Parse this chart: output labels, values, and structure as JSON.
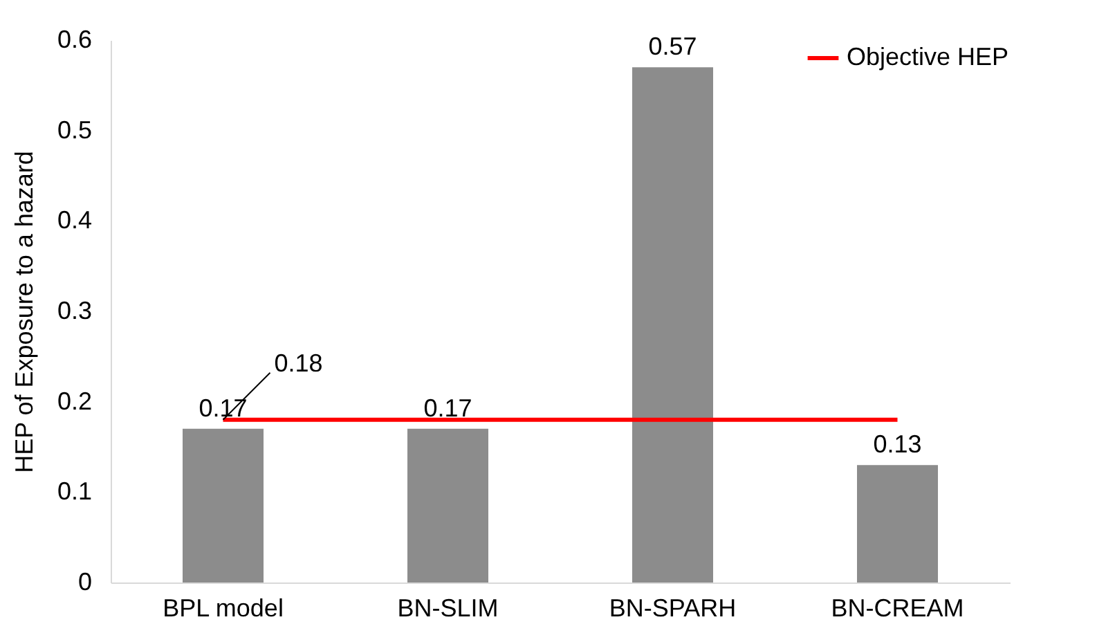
{
  "chart_data": {
    "type": "bar",
    "ylabel": "HEP of Exposure to a hazard",
    "categories": [
      "BPL model",
      "BN-SLIM",
      "BN-SPARH",
      "BN-CREAM"
    ],
    "values": [
      0.17,
      0.17,
      0.57,
      0.13
    ],
    "color": "#8c8c8c",
    "ylim": [
      0,
      0.6
    ],
    "yticks": [
      0,
      0.1,
      0.2,
      0.3,
      0.4,
      0.5,
      0.6
    ],
    "data_labels": true,
    "grid": false,
    "legend": "top right",
    "ref_lines": [
      {
        "axis": "y",
        "value": 0.18,
        "label": "Objective HEP",
        "color": "#ff0000",
        "line_style": "solid"
      }
    ],
    "annotations": [
      {
        "text": "0.18",
        "x": "BPL model",
        "y": 0.18
      }
    ]
  }
}
